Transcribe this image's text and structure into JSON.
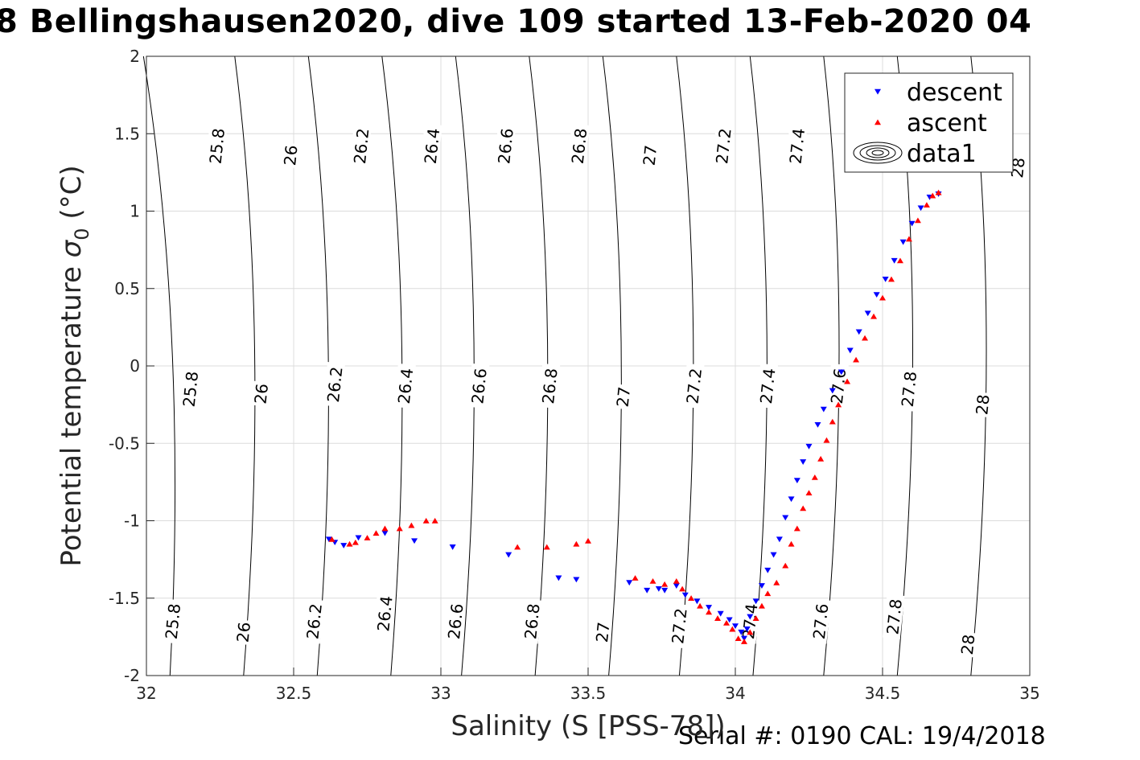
{
  "title": "8 Bellingshausen2020, dive 109 started 13-Feb-2020 04",
  "footer": "Serial #: 0190  CAL: 19/4/2018",
  "chart_data": {
    "type": "scatter",
    "xlabel": "Salinity (S [PSS-78])",
    "ylabel": "Potential temperature σ₀ (°C)",
    "ylabel_main": "Potential temperature ",
    "ylabel_sigma": "σ",
    "ylabel_sub": "0",
    "ylabel_unit": " (°C)",
    "xlim": [
      32,
      35
    ],
    "ylim": [
      -2,
      2
    ],
    "xticks": [
      32,
      32.5,
      33,
      33.5,
      34,
      34.5,
      35
    ],
    "yticks": [
      -2,
      -1.5,
      -1,
      -0.5,
      0,
      0.5,
      1,
      1.5,
      2
    ],
    "grid": true,
    "legend_position": "top-right",
    "legend": [
      {
        "name": "descent",
        "marker": "triangle-down",
        "color": "#0000ff"
      },
      {
        "name": "ascent",
        "marker": "triangle-up",
        "color": "#ff0000"
      },
      {
        "name": "data1",
        "marker": "contour",
        "color": "#000000"
      }
    ],
    "isopycnals": [
      {
        "sigma": "25.8",
        "x_bottom": 32.08,
        "x_top": 31.98
      },
      {
        "sigma": "26",
        "x_bottom": 32.33,
        "x_top": 32.29
      },
      {
        "sigma": "26.2",
        "x_bottom": 32.58,
        "x_top": 32.54
      },
      {
        "sigma": "26.4",
        "x_bottom": 32.83,
        "x_top": 32.79
      },
      {
        "sigma": "26.6",
        "x_bottom": 33.07,
        "x_top": 33.04
      },
      {
        "sigma": "26.8",
        "x_bottom": 33.32,
        "x_top": 33.29
      },
      {
        "sigma": "27",
        "x_bottom": 33.57,
        "x_top": 33.54
      },
      {
        "sigma": "27.2",
        "x_bottom": 33.81,
        "x_top": 33.79
      },
      {
        "sigma": "27.4",
        "x_bottom": 34.06,
        "x_top": 34.04
      },
      {
        "sigma": "27.6",
        "x_bottom": 34.3,
        "x_top": 34.29
      },
      {
        "sigma": "27.8",
        "x_bottom": 34.55,
        "x_top": 34.54
      },
      {
        "sigma": "28",
        "x_bottom": 34.8,
        "x_top": 34.79
      }
    ],
    "isopycnal_labels": [
      {
        "text": "25.8",
        "x": 32.09,
        "y": -1.65
      },
      {
        "text": "26",
        "x": 32.33,
        "y": -1.72
      },
      {
        "text": "26.2",
        "x": 32.57,
        "y": -1.65
      },
      {
        "text": "26.4",
        "x": 32.81,
        "y": -1.6
      },
      {
        "text": "26.6",
        "x": 33.05,
        "y": -1.65
      },
      {
        "text": "26.8",
        "x": 33.31,
        "y": -1.65
      },
      {
        "text": "27",
        "x": 33.55,
        "y": -1.72
      },
      {
        "text": "27.2",
        "x": 33.81,
        "y": -1.68
      },
      {
        "text": "27.4",
        "x": 34.05,
        "y": -1.65
      },
      {
        "text": "27.6",
        "x": 34.29,
        "y": -1.65
      },
      {
        "text": "27.8",
        "x": 34.54,
        "y": -1.62
      },
      {
        "text": "28",
        "x": 34.79,
        "y": -1.8
      },
      {
        "text": "25.8",
        "x": 32.15,
        "y": -0.15
      },
      {
        "text": "26",
        "x": 32.39,
        "y": -0.18
      },
      {
        "text": "26.2",
        "x": 32.64,
        "y": -0.12
      },
      {
        "text": "26.4",
        "x": 32.88,
        "y": -0.13
      },
      {
        "text": "26.6",
        "x": 33.13,
        "y": -0.13
      },
      {
        "text": "26.8",
        "x": 33.37,
        "y": -0.13
      },
      {
        "text": "27",
        "x": 33.62,
        "y": -0.2
      },
      {
        "text": "27.2",
        "x": 33.86,
        "y": -0.13
      },
      {
        "text": "27.4",
        "x": 34.11,
        "y": -0.13
      },
      {
        "text": "27.6",
        "x": 34.35,
        "y": -0.13
      },
      {
        "text": "27.8",
        "x": 34.59,
        "y": -0.15
      },
      {
        "text": "28",
        "x": 34.84,
        "y": -0.25
      },
      {
        "text": "25.8",
        "x": 32.24,
        "y": 1.42
      },
      {
        "text": "26",
        "x": 32.49,
        "y": 1.36
      },
      {
        "text": "26.2",
        "x": 32.73,
        "y": 1.42
      },
      {
        "text": "26.4",
        "x": 32.97,
        "y": 1.42
      },
      {
        "text": "26.6",
        "x": 33.22,
        "y": 1.42
      },
      {
        "text": "26.8",
        "x": 33.47,
        "y": 1.42
      },
      {
        "text": "27",
        "x": 33.71,
        "y": 1.36
      },
      {
        "text": "27.2",
        "x": 33.96,
        "y": 1.42
      },
      {
        "text": "27.4",
        "x": 34.21,
        "y": 1.42
      },
      {
        "text": "28",
        "x": 34.96,
        "y": 1.28
      }
    ],
    "series": [
      {
        "name": "descent",
        "color": "#0000ff",
        "marker": "triangle-down",
        "points": [
          [
            32.62,
            -1.12
          ],
          [
            32.64,
            -1.14
          ],
          [
            32.67,
            -1.16
          ],
          [
            32.72,
            -1.11
          ],
          [
            32.81,
            -1.08
          ],
          [
            32.91,
            -1.13
          ],
          [
            33.04,
            -1.17
          ],
          [
            33.23,
            -1.22
          ],
          [
            33.4,
            -1.37
          ],
          [
            33.46,
            -1.38
          ],
          [
            33.64,
            -1.4
          ],
          [
            33.7,
            -1.45
          ],
          [
            33.74,
            -1.44
          ],
          [
            33.76,
            -1.45
          ],
          [
            33.8,
            -1.42
          ],
          [
            33.83,
            -1.48
          ],
          [
            33.87,
            -1.52
          ],
          [
            33.91,
            -1.56
          ],
          [
            33.95,
            -1.6
          ],
          [
            33.98,
            -1.64
          ],
          [
            34.0,
            -1.68
          ],
          [
            34.02,
            -1.72
          ],
          [
            34.03,
            -1.76
          ],
          [
            34.04,
            -1.7
          ],
          [
            34.05,
            -1.62
          ],
          [
            34.07,
            -1.52
          ],
          [
            34.09,
            -1.42
          ],
          [
            34.11,
            -1.32
          ],
          [
            34.13,
            -1.22
          ],
          [
            34.15,
            -1.12
          ],
          [
            34.17,
            -0.98
          ],
          [
            34.19,
            -0.86
          ],
          [
            34.21,
            -0.74
          ],
          [
            34.23,
            -0.62
          ],
          [
            34.25,
            -0.52
          ],
          [
            34.28,
            -0.38
          ],
          [
            34.3,
            -0.28
          ],
          [
            34.33,
            -0.16
          ],
          [
            34.36,
            -0.04
          ],
          [
            34.39,
            0.1
          ],
          [
            34.42,
            0.22
          ],
          [
            34.45,
            0.34
          ],
          [
            34.48,
            0.46
          ],
          [
            34.51,
            0.56
          ],
          [
            34.54,
            0.68
          ],
          [
            34.57,
            0.8
          ],
          [
            34.6,
            0.92
          ],
          [
            34.63,
            1.02
          ],
          [
            34.66,
            1.09
          ],
          [
            34.69,
            1.11
          ]
        ]
      },
      {
        "name": "ascent",
        "color": "#ff0000",
        "marker": "triangle-up",
        "points": [
          [
            32.63,
            -1.12
          ],
          [
            32.69,
            -1.15
          ],
          [
            32.71,
            -1.14
          ],
          [
            32.75,
            -1.11
          ],
          [
            32.78,
            -1.08
          ],
          [
            32.81,
            -1.05
          ],
          [
            32.86,
            -1.05
          ],
          [
            32.9,
            -1.03
          ],
          [
            32.95,
            -1.0
          ],
          [
            32.98,
            -1.0
          ],
          [
            33.26,
            -1.17
          ],
          [
            33.36,
            -1.17
          ],
          [
            33.46,
            -1.15
          ],
          [
            33.5,
            -1.13
          ],
          [
            33.66,
            -1.37
          ],
          [
            33.72,
            -1.39
          ],
          [
            33.76,
            -1.41
          ],
          [
            33.8,
            -1.39
          ],
          [
            33.82,
            -1.44
          ],
          [
            33.85,
            -1.5
          ],
          [
            33.88,
            -1.55
          ],
          [
            33.91,
            -1.59
          ],
          [
            33.94,
            -1.63
          ],
          [
            33.97,
            -1.66
          ],
          [
            33.99,
            -1.7
          ],
          [
            34.01,
            -1.76
          ],
          [
            34.03,
            -1.78
          ],
          [
            34.05,
            -1.72
          ],
          [
            34.07,
            -1.63
          ],
          [
            34.09,
            -1.55
          ],
          [
            34.11,
            -1.47
          ],
          [
            34.14,
            -1.4
          ],
          [
            34.17,
            -1.29
          ],
          [
            34.19,
            -1.15
          ],
          [
            34.21,
            -1.05
          ],
          [
            34.23,
            -0.92
          ],
          [
            34.25,
            -0.82
          ],
          [
            34.27,
            -0.72
          ],
          [
            34.29,
            -0.6
          ],
          [
            34.31,
            -0.48
          ],
          [
            34.33,
            -0.36
          ],
          [
            34.35,
            -0.25
          ],
          [
            34.38,
            -0.1
          ],
          [
            34.41,
            0.04
          ],
          [
            34.44,
            0.18
          ],
          [
            34.47,
            0.32
          ],
          [
            34.5,
            0.44
          ],
          [
            34.53,
            0.56
          ],
          [
            34.56,
            0.68
          ],
          [
            34.59,
            0.82
          ],
          [
            34.62,
            0.94
          ],
          [
            34.65,
            1.04
          ],
          [
            34.67,
            1.1
          ],
          [
            34.69,
            1.12
          ]
        ]
      }
    ]
  }
}
